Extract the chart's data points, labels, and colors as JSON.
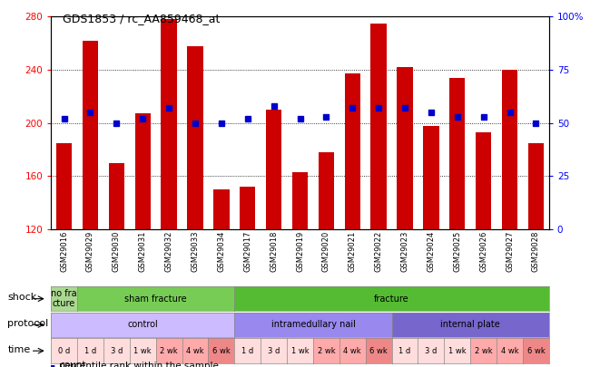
{
  "title": "GDS1853 / rc_AA859468_at",
  "samples": [
    "GSM29016",
    "GSM29029",
    "GSM29030",
    "GSM29031",
    "GSM29032",
    "GSM29033",
    "GSM29034",
    "GSM29017",
    "GSM29018",
    "GSM29019",
    "GSM29020",
    "GSM29021",
    "GSM29022",
    "GSM29023",
    "GSM29024",
    "GSM29025",
    "GSM29026",
    "GSM29027",
    "GSM29028"
  ],
  "bar_values": [
    185,
    262,
    170,
    207,
    278,
    258,
    150,
    152,
    210,
    163,
    178,
    237,
    275,
    242,
    198,
    234,
    193,
    240,
    185
  ],
  "pct_values": [
    52,
    55,
    50,
    52,
    57,
    50,
    50,
    52,
    58,
    52,
    53,
    57,
    57,
    57,
    55,
    53,
    53,
    55,
    50
  ],
  "ylim_left": [
    120,
    280
  ],
  "ylim_right": [
    0,
    100
  ],
  "yticks_left": [
    120,
    160,
    200,
    240,
    280
  ],
  "yticks_right": [
    0,
    25,
    50,
    75,
    100
  ],
  "bar_color": "#cc0000",
  "pct_color": "#0000cc",
  "bg_color": "#ffffff",
  "shock_labels": [
    {
      "text": "no fra\ncture",
      "start": 0,
      "end": 1,
      "color": "#aad890"
    },
    {
      "text": "sham fracture",
      "start": 1,
      "end": 7,
      "color": "#77cc55"
    },
    {
      "text": "fracture",
      "start": 7,
      "end": 19,
      "color": "#55bb33"
    }
  ],
  "protocol_labels": [
    {
      "text": "control",
      "start": 0,
      "end": 7,
      "color": "#ccbbff"
    },
    {
      "text": "intramedullary nail",
      "start": 7,
      "end": 13,
      "color": "#9988ee"
    },
    {
      "text": "internal plate",
      "start": 13,
      "end": 19,
      "color": "#7766cc"
    }
  ],
  "time_labels": [
    "0 d",
    "1 d",
    "3 d",
    "1 wk",
    "2 wk",
    "4 wk",
    "6 wk",
    "1 d",
    "3 d",
    "1 wk",
    "2 wk",
    "4 wk",
    "6 wk",
    "1 d",
    "3 d",
    "1 wk",
    "2 wk",
    "4 wk",
    "6 wk"
  ],
  "time_colors": [
    "#ffdddd",
    "#ffdddd",
    "#ffdddd",
    "#ffdddd",
    "#ffaaaa",
    "#ffaaaa",
    "#ee8888",
    "#ffdddd",
    "#ffdddd",
    "#ffdddd",
    "#ffaaaa",
    "#ffaaaa",
    "#ee8888",
    "#ffdddd",
    "#ffdddd",
    "#ffdddd",
    "#ffaaaa",
    "#ffaaaa",
    "#ee8888"
  ]
}
